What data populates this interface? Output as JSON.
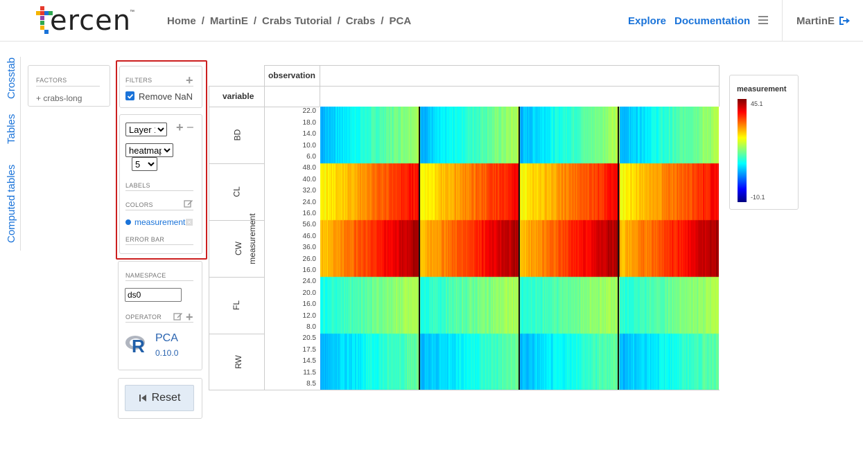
{
  "header": {
    "logo_text": "ercen",
    "logo_tm": "™",
    "breadcrumb": [
      "Home",
      "MartinE",
      "Crabs Tutorial",
      "Crabs",
      "PCA"
    ],
    "breadcrumb_sep": "/",
    "explore": "Explore",
    "documentation": "Documentation",
    "user": "MartinE"
  },
  "side_tabs": [
    "Crosstab",
    "Tables",
    "Computed tables"
  ],
  "factors": {
    "title": "FACTORS",
    "item": "+ crabs-long"
  },
  "filters": {
    "title": "FILTERS",
    "remove_nan": "Remove NaN",
    "remove_nan_checked": true
  },
  "layer": {
    "layer_select": "Layer 1",
    "chart_select": "heatmap",
    "size_select": "5",
    "labels_title": "LABELS",
    "colors_title": "COLORS",
    "color_factor": "measurement",
    "errorbar_title": "ERROR BAR"
  },
  "namespace": {
    "title": "NAMESPACE",
    "value": "ds0"
  },
  "operator": {
    "title": "OPERATOR",
    "r_letter": "R",
    "name": "PCA",
    "version": "0.10.0"
  },
  "reset_label": "Reset",
  "crosstab": {
    "col_header": "observation",
    "row_header": "variable",
    "y_axis_label": "measurement",
    "rows": [
      {
        "name": "BD",
        "ticks": [
          "22.0",
          "18.0",
          "14.0",
          "10.0",
          "6.0"
        ]
      },
      {
        "name": "CL",
        "ticks": [
          "48.0",
          "40.0",
          "32.0",
          "24.0",
          "16.0"
        ]
      },
      {
        "name": "CW",
        "ticks": [
          "56.0",
          "46.0",
          "36.0",
          "26.0",
          "16.0"
        ]
      },
      {
        "name": "FL",
        "ticks": [
          "24.0",
          "20.0",
          "16.0",
          "12.0",
          "8.0"
        ]
      },
      {
        "name": "RW",
        "ticks": [
          "20.5",
          "17.5",
          "14.5",
          "11.5",
          "8.5"
        ]
      }
    ]
  },
  "legend": {
    "title": "measurement",
    "max": "45.1",
    "min": "-10.1"
  },
  "colors": {
    "accent": "#1a73d9",
    "highlight": "#cc1f1f"
  }
}
